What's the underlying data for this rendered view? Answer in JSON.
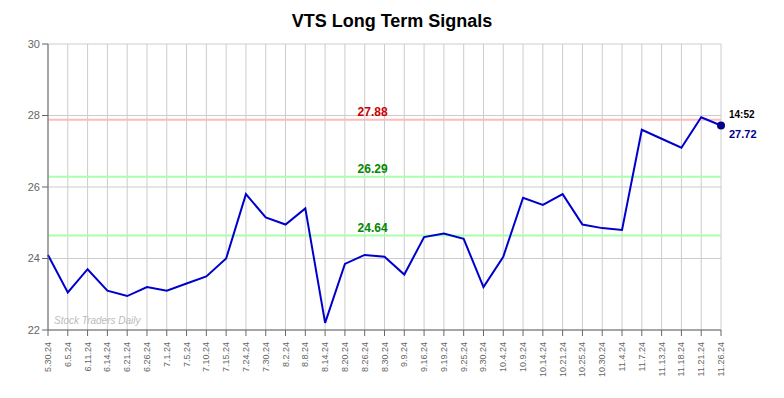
{
  "chart_data": {
    "type": "line",
    "title": "VTS Long Term Signals",
    "categories": [
      "5.30.24",
      "6.5.24",
      "6.11.24",
      "6.14.24",
      "6.21.24",
      "6.26.24",
      "7.1.24",
      "7.5.24",
      "7.10.24",
      "7.15.24",
      "7.24.24",
      "7.30.24",
      "8.2.24",
      "8.8.24",
      "8.14.24",
      "8.20.24",
      "8.26.24",
      "8.30.24",
      "9.9.24",
      "9.16.24",
      "9.19.24",
      "9.25.24",
      "9.30.24",
      "10.4.24",
      "10.9.24",
      "10.14.24",
      "10.21.24",
      "10.25.24",
      "10.30.24",
      "11.4.24",
      "11.7.24",
      "11.13.24",
      "11.18.24",
      "11.21.24",
      "11.26.24"
    ],
    "values": [
      24.1,
      23.05,
      23.7,
      23.1,
      22.95,
      23.2,
      23.1,
      23.3,
      23.5,
      24.0,
      25.8,
      25.15,
      24.95,
      25.4,
      22.2,
      23.85,
      24.1,
      24.05,
      23.55,
      24.6,
      24.7,
      24.55,
      23.2,
      24.05,
      25.7,
      25.5,
      25.8,
      24.95,
      24.85,
      24.8,
      27.6,
      27.35,
      27.1,
      27.95,
      27.72
    ],
    "color": "#0000cc",
    "ylim": [
      22,
      30
    ],
    "yticks": [
      22,
      24,
      26,
      28,
      30
    ],
    "grid": true,
    "reference_lines": [
      {
        "value": 27.88,
        "label": "27.88",
        "color": "#ffbbbb",
        "label_color": "#cc0000"
      },
      {
        "value": 26.29,
        "label": "26.29",
        "color": "#aaffaa",
        "label_color": "#008800"
      },
      {
        "value": 24.64,
        "label": "24.64",
        "color": "#aaffaa",
        "label_color": "#008800"
      }
    ],
    "last_point": {
      "color": "#00008B",
      "time_label": "14:52",
      "value_label": "27.72"
    },
    "watermark": "Stock Traders Daily"
  }
}
